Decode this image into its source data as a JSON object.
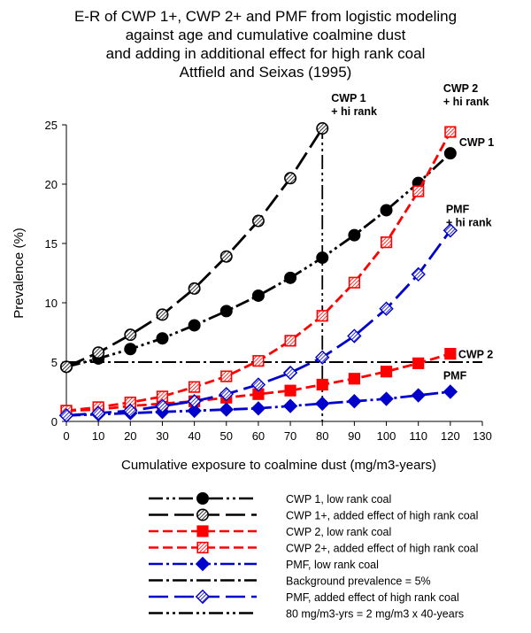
{
  "chart_data": {
    "type": "line",
    "title_lines": [
      "E-R of CWP 1+, CWP 2+ and PMF from logistic modeling",
      "against age and cumulative coalmine dust",
      "and adding in additional effect for high rank coal",
      "Attfield and Seixas (1995)"
    ],
    "xlabel": "Cumulative exposure to coalmine dust (mg/m3-years)",
    "ylabel": "Prevalence (%)",
    "xlim": [
      0,
      130
    ],
    "ylim": [
      0,
      25
    ],
    "xticks": [
      "0",
      "10",
      "20",
      "30",
      "40",
      "50",
      "60",
      "70",
      "80",
      "90",
      "100",
      "110",
      "120",
      "130"
    ],
    "yticks": [
      "0",
      "5",
      "10",
      "15",
      "20",
      "25"
    ],
    "x": [
      0,
      10,
      20,
      30,
      40,
      50,
      60,
      70,
      80,
      90,
      100,
      110,
      120
    ],
    "series": [
      {
        "name": "CWP 1, low rank coal",
        "color": "#000000",
        "dash": "dashdotdot",
        "marker": "circle",
        "values": [
          4.6,
          5.3,
          6.1,
          7.0,
          8.1,
          9.3,
          10.6,
          12.1,
          13.8,
          15.7,
          17.8,
          20.1,
          22.6
        ]
      },
      {
        "name": "CWP 1+,  added effect of high rank coal",
        "color": "#000000",
        "dash": "longdash",
        "marker": "circle-hatched",
        "x": [
          0,
          10,
          20,
          30,
          40,
          50,
          60,
          70,
          80
        ],
        "values": [
          4.6,
          5.8,
          7.3,
          9.0,
          11.2,
          13.9,
          16.9,
          20.5,
          24.7
        ]
      },
      {
        "name": "CWP 2, low rank coal",
        "color": "#ff0000",
        "dash": "dash",
        "marker": "square",
        "values": [
          0.9,
          1.0,
          1.3,
          1.5,
          1.7,
          2.0,
          2.3,
          2.6,
          3.1,
          3.6,
          4.2,
          4.9,
          5.7
        ]
      },
      {
        "name": "CWP 2+,  added effect of high rank coal",
        "color": "#ff0000",
        "dash": "dash",
        "marker": "square-hatched",
        "values": [
          0.9,
          1.2,
          1.6,
          2.1,
          2.9,
          3.8,
          5.1,
          6.8,
          8.9,
          11.7,
          15.1,
          19.4,
          24.4
        ]
      },
      {
        "name": "PMF, low rank coal",
        "color": "#0000cc",
        "dash": "dashdot",
        "marker": "diamond",
        "values": [
          0.5,
          0.6,
          0.7,
          0.8,
          0.9,
          1.0,
          1.1,
          1.3,
          1.5,
          1.7,
          1.9,
          2.2,
          2.5
        ]
      },
      {
        "name": "PMF, added effect of high rank coal",
        "color": "#0000cc",
        "dash": "longdash",
        "marker": "diamond-hatched",
        "values": [
          0.5,
          0.7,
          0.9,
          1.3,
          1.7,
          2.3,
          3.1,
          4.1,
          5.4,
          7.2,
          9.5,
          12.4,
          16.1
        ]
      }
    ],
    "reference_lines": [
      {
        "name": "Background prevalence = 5%",
        "orientation": "horizontal",
        "value": 5
      },
      {
        "name": "80 mg/m3-yrs  = 2 mg/m3 x 40-years",
        "orientation": "vertical",
        "value": 80
      }
    ],
    "annotations": [
      {
        "text_lines": [
          "CWP 1",
          "+ hi rank"
        ],
        "anchor_x": 80,
        "anchor_y": 24.7
      },
      {
        "text_lines": [
          "CWP 2",
          "+ hi rank"
        ],
        "anchor_x": 120,
        "anchor_y": 24.4
      },
      {
        "text_lines": [
          "CWP 1"
        ],
        "anchor_x": 120,
        "anchor_y": 22.6
      },
      {
        "text_lines": [
          "PMF",
          "+ hi rank"
        ],
        "anchor_x": 120,
        "anchor_y": 16.1
      },
      {
        "text_lines": [
          "CWP 2"
        ],
        "anchor_x": 120,
        "anchor_y": 5.7
      },
      {
        "text_lines": [
          "PMF"
        ],
        "anchor_x": 120,
        "anchor_y": 2.5
      }
    ],
    "legend": {
      "placement": "bottom",
      "entries": [
        {
          "label": "CWP 1, low rank coal",
          "color": "#000000",
          "dash": "dashdotdot",
          "marker": "circle"
        },
        {
          "label": "CWP 1+,  added effect of high rank coal",
          "color": "#000000",
          "dash": "longdash",
          "marker": "circle-hatched"
        },
        {
          "label": "CWP 2, low rank coal",
          "color": "#ff0000",
          "dash": "dash",
          "marker": "square"
        },
        {
          "label": "CWP 2+,  added effect of high rank coal",
          "color": "#ff0000",
          "dash": "dash",
          "marker": "square-hatched"
        },
        {
          "label": "PMF, low rank coal",
          "color": "#0000cc",
          "dash": "dashdot",
          "marker": "diamond"
        },
        {
          "label": "Background prevalence = 5%",
          "color": "#000000",
          "dash": "dashdot",
          "marker": "none"
        },
        {
          "label": "PMF, added effect of high rank coal",
          "color": "#0000cc",
          "dash": "longdash",
          "marker": "diamond-hatched"
        },
        {
          "label": "80 mg/m3-yrs  = 2 mg/m3 x 40-years",
          "color": "#000000",
          "dash": "dashdotdot",
          "marker": "none"
        }
      ]
    }
  }
}
